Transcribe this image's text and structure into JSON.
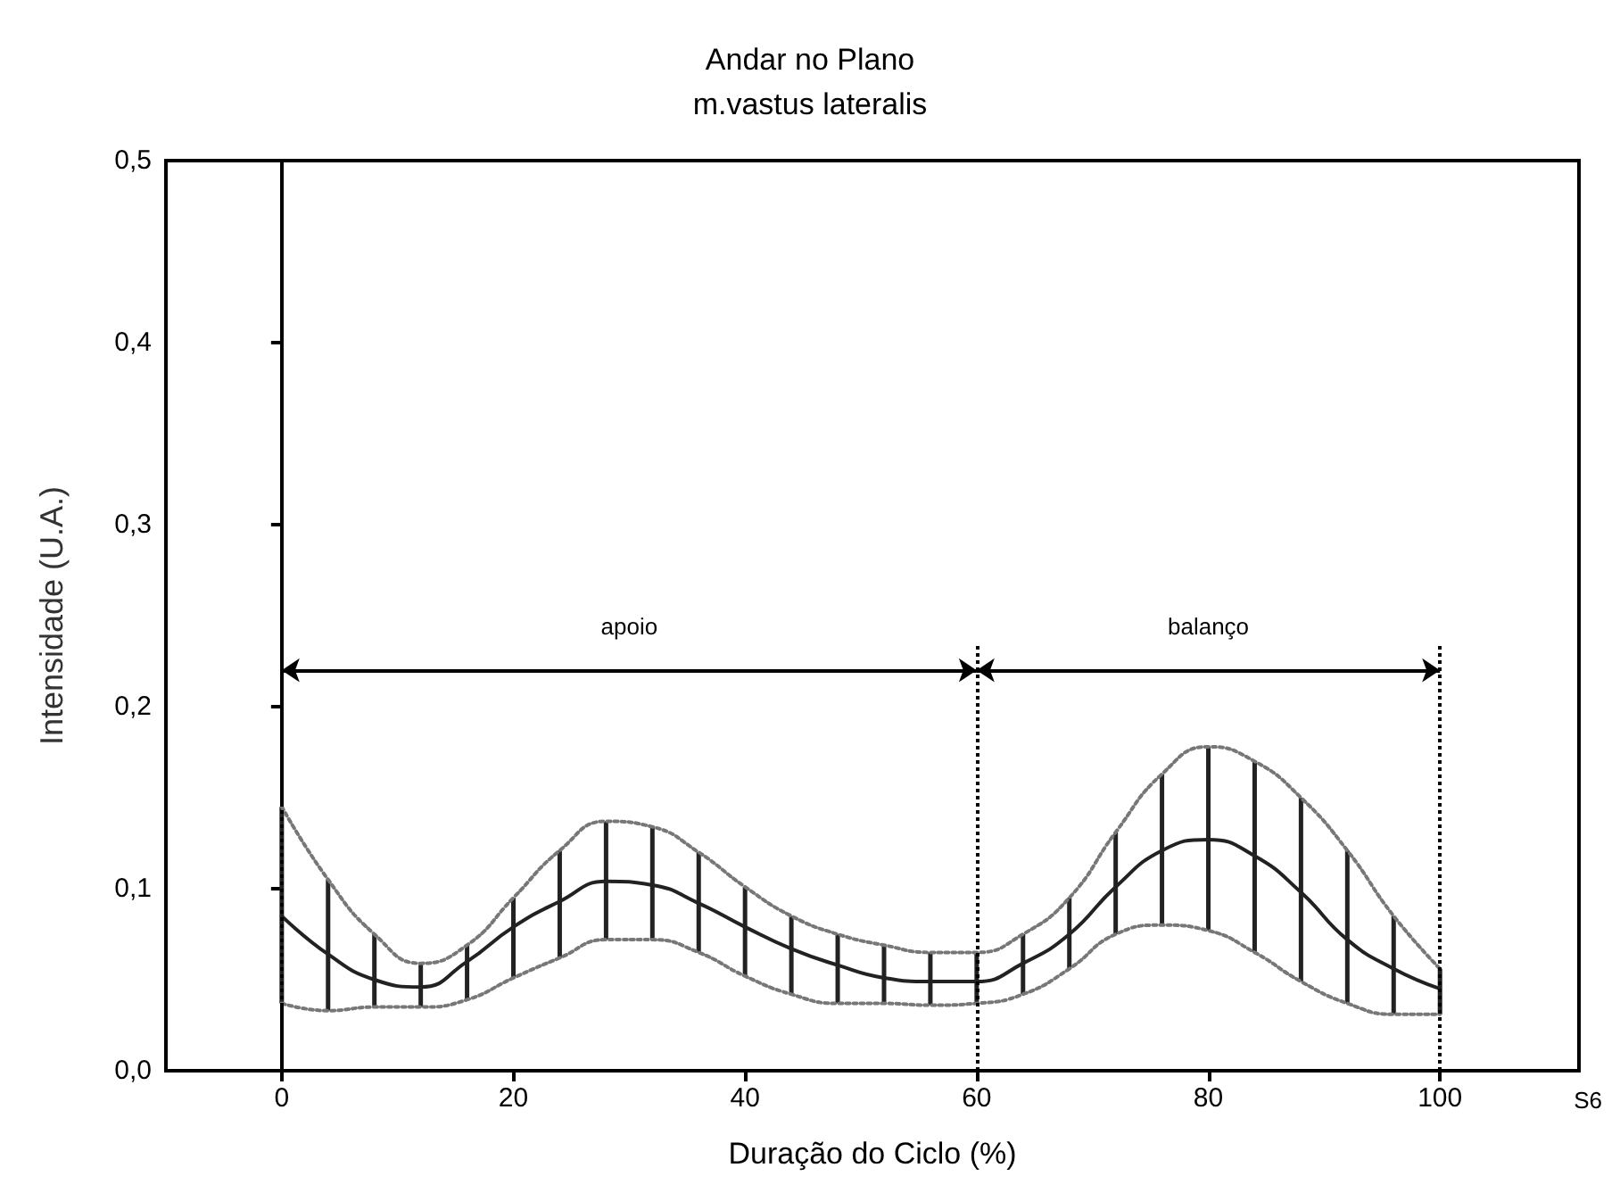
{
  "chart_data": {
    "type": "line",
    "title": "Andar no Plano",
    "subtitle": "m.vastus lateralis",
    "xlabel": "Duração do Ciclo (%)",
    "ylabel": "Intensidade (U.A.)",
    "x": [
      0,
      4,
      8,
      12,
      16,
      20,
      24,
      28,
      32,
      36,
      40,
      44,
      48,
      52,
      56,
      60,
      64,
      68,
      72,
      76,
      80,
      84,
      88,
      92,
      96,
      100
    ],
    "series": [
      {
        "color": "#222222",
        "line_style": "solid",
        "values": [
          0.085,
          0.064,
          0.05,
          0.046,
          0.06,
          0.079,
          0.093,
          0.104,
          0.102,
          0.092,
          0.079,
          0.067,
          0.058,
          0.051,
          0.049,
          0.049,
          0.059,
          0.075,
          0.101,
          0.121,
          0.127,
          0.118,
          0.098,
          0.072,
          0.056,
          0.045
        ],
        "errors": [
          [
            0.037,
            0.145
          ],
          [
            0.033,
            0.105
          ],
          [
            0.035,
            0.075
          ],
          [
            0.035,
            0.059
          ],
          [
            0.039,
            0.069
          ],
          [
            0.051,
            0.095
          ],
          [
            0.062,
            0.121
          ],
          [
            0.072,
            0.137
          ],
          [
            0.072,
            0.134
          ],
          [
            0.065,
            0.12
          ],
          [
            0.052,
            0.101
          ],
          [
            0.042,
            0.085
          ],
          [
            0.037,
            0.075
          ],
          [
            0.037,
            0.069
          ],
          [
            0.036,
            0.065
          ],
          [
            0.037,
            0.065
          ],
          [
            0.042,
            0.075
          ],
          [
            0.056,
            0.095
          ],
          [
            0.075,
            0.131
          ],
          [
            0.08,
            0.163
          ],
          [
            0.077,
            0.178
          ],
          [
            0.065,
            0.17
          ],
          [
            0.049,
            0.15
          ],
          [
            0.037,
            0.121
          ],
          [
            0.031,
            0.085
          ],
          [
            0.031,
            0.056
          ]
        ]
      },
      {
        "color": "#777777",
        "line_style": "dotted",
        "values": [
          0.145,
          0.105,
          0.075,
          0.059,
          0.069,
          0.095,
          0.121,
          0.137,
          0.134,
          0.12,
          0.101,
          0.085,
          0.075,
          0.069,
          0.065,
          0.065,
          0.075,
          0.095,
          0.131,
          0.163,
          0.178,
          0.17,
          0.15,
          0.121,
          0.085,
          0.056
        ]
      },
      {
        "color": "#777777",
        "line_style": "dotted",
        "values": [
          0.037,
          0.033,
          0.035,
          0.035,
          0.039,
          0.051,
          0.062,
          0.072,
          0.072,
          0.065,
          0.052,
          0.042,
          0.037,
          0.037,
          0.036,
          0.037,
          0.042,
          0.056,
          0.075,
          0.08,
          0.077,
          0.065,
          0.049,
          0.037,
          0.031,
          0.031
        ]
      }
    ],
    "marker": "none",
    "xlim": [
      -10,
      112
    ],
    "xticks": [
      0,
      20,
      40,
      60,
      80,
      100
    ],
    "ylim": [
      0,
      0.5
    ],
    "yticks": [
      {
        "value": 0,
        "label": "0,0"
      },
      {
        "value": 0.1,
        "label": "0,1"
      },
      {
        "value": 0.2,
        "label": "0,2"
      },
      {
        "value": 0.3,
        "label": "0,3"
      },
      {
        "value": 0.4,
        "label": "0,4"
      },
      {
        "value": 0.5,
        "label": "0,5"
      }
    ],
    "ref_lines": [
      {
        "axis": "x",
        "value": 0,
        "line_style": "dotted"
      },
      {
        "axis": "x",
        "value": 60,
        "line_style": "dotted"
      },
      {
        "axis": "x",
        "value": 100,
        "line_style": "dotted"
      }
    ],
    "annotations": [
      "apoio",
      "balanço",
      "S6"
    ]
  }
}
